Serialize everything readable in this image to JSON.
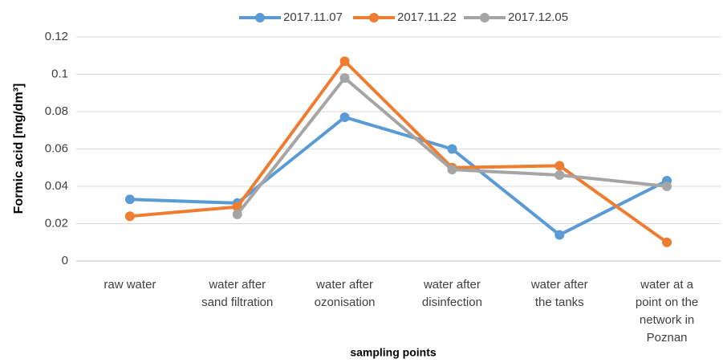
{
  "chart_data": {
    "type": "line",
    "y_axis_label": "Formic acid [mg/dm³]",
    "x_axis_label": "sampling points",
    "categories": [
      "raw water",
      "water after\nsand filtration",
      "water after\nozonisation",
      "water after\ndisinfection",
      "water after\nthe tanks",
      "water at a\npoint on the\nnetwork in\nPoznan"
    ],
    "series": [
      {
        "name": "2017.11.07",
        "color": "#5b9bd5",
        "values": [
          0.033,
          0.031,
          0.077,
          0.06,
          0.014,
          0.043
        ]
      },
      {
        "name": "2017.11.22",
        "color": "#ed7d31",
        "values": [
          0.024,
          0.029,
          0.107,
          0.05,
          0.051,
          0.01
        ]
      },
      {
        "name": "2017.12.05",
        "color": "#a5a5a5",
        "values": [
          null,
          0.025,
          0.098,
          0.049,
          0.046,
          0.04
        ]
      }
    ],
    "ylim": [
      0,
      0.12
    ],
    "yticks": [
      0,
      0.02,
      0.04,
      0.06,
      0.08,
      0.1,
      0.12
    ],
    "grid": true,
    "legend": "top"
  }
}
